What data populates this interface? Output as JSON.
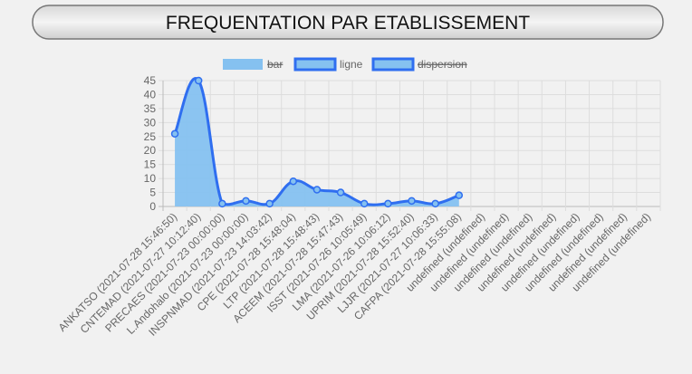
{
  "chart_data": {
    "type": "line",
    "title": "FREQUENTATION PAR ETABLISSEMENT",
    "categories": [
      "ANKATSO (2021-07-28 15:46:50)",
      "CNTEMAD (2021-07-27 10:12:40)",
      "PRECAES (2021-07-23 00:00:00)",
      "L.Andohalo (2021-07-23 00:00:00)",
      "INSPNMAD (2021-07-23 14:03:42)",
      "CPE (2021-07-28 15:48:04)",
      "LTP (2021-07-28 15:48:43)",
      "ACEEM (2021-07-28 15:47:43)",
      "ISST (2021-07-26 10:05:49)",
      "LMA (2021-07-26 10:06:12)",
      "UPRIM (2021-07-28 15:52:40)",
      "LJJR (2021-07-27 10:06:33)",
      "CAFPA (2021-07-28 15:55:08)",
      "undefined (undefined)",
      "undefined (undefined)",
      "undefined (undefined)",
      "undefined (undefined)",
      "undefined (undefined)",
      "undefined (undefined)",
      "undefined (undefined)",
      "undefined (undefined)"
    ],
    "series": [
      {
        "name": "bar",
        "color": "#85c1f0",
        "hidden": true
      },
      {
        "name": "ligne",
        "color": "#2f6ef0",
        "fill": "#85c1f0",
        "hidden": false,
        "values": [
          26,
          45,
          1,
          2,
          1,
          9,
          6,
          5,
          1,
          1,
          2,
          1,
          4,
          null,
          null,
          null,
          null,
          null,
          null,
          null,
          null
        ]
      },
      {
        "name": "dispersion",
        "color": "#2f6ef0",
        "fill": "#85c1f0",
        "hidden": true
      }
    ],
    "ylim": [
      0,
      45
    ],
    "yticks": [
      0,
      5,
      10,
      15,
      20,
      25,
      30,
      35,
      40,
      45
    ],
    "grid": true
  }
}
